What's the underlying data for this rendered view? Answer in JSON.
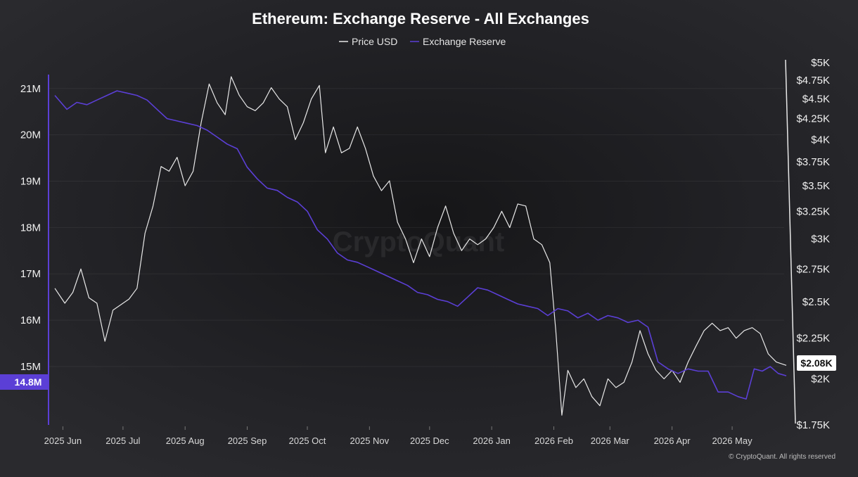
{
  "colors": {
    "price": "#e8e8e8",
    "reserve": "#5b3fd6",
    "badge_reserve_bg": "#5b3fd6",
    "badge_price_bg": "#ffffff",
    "background": "#1e1e21"
  },
  "footer": {
    "watermark": "CryptoQuant",
    "copyright": "© CryptoQuant. All rights reserved"
  },
  "chart_data": {
    "type": "line",
    "title": "Ethereum: Exchange Reserve - All Exchanges",
    "legend_position": "top-center",
    "grid": true,
    "x_tick_labels": [
      "2025 Jun",
      "2025 Jul",
      "2025 Aug",
      "2025 Sep",
      "2025 Oct",
      "2025 Nov",
      "2025 Dec",
      "2026 Jan",
      "2026 Feb",
      "2026 Mar",
      "2026 Apr",
      "2026 May"
    ],
    "x_range": [
      "2025-05-28",
      "2026-05-28"
    ],
    "y_left": {
      "ticks": [
        "21M",
        "20M",
        "19M",
        "18M",
        "17M",
        "16M",
        "15M"
      ],
      "tick_values": [
        21,
        20,
        19,
        18,
        17,
        16,
        15
      ],
      "range": [
        13.8,
        21.3
      ],
      "unit": "M"
    },
    "y_right": {
      "ticks": [
        "$5K",
        "$4.75K",
        "$4.5K",
        "$4.25K",
        "$4K",
        "$3.75K",
        "$3.5K",
        "$3.25K",
        "$3K",
        "$2.75K",
        "$2.5K",
        "$2.25K",
        "$2K",
        "$1.75K"
      ],
      "tick_values": [
        5000,
        4750,
        4500,
        4250,
        4000,
        3750,
        3500,
        3250,
        3000,
        2750,
        2500,
        2250,
        2000,
        1750
      ],
      "range": [
        1750,
        5000
      ],
      "scale": "log"
    },
    "current_values": {
      "reserve_label": "14.8M",
      "price_label": "$2.08K"
    },
    "series": [
      {
        "name": "Price USD",
        "axis": "right",
        "points": [
          [
            "2025-05-28",
            2600
          ],
          [
            "2025-06-02",
            2490
          ],
          [
            "2025-06-06",
            2570
          ],
          [
            "2025-06-10",
            2750
          ],
          [
            "2025-06-14",
            2530
          ],
          [
            "2025-06-18",
            2490
          ],
          [
            "2025-06-22",
            2230
          ],
          [
            "2025-06-26",
            2440
          ],
          [
            "2025-06-30",
            2480
          ],
          [
            "2025-07-04",
            2520
          ],
          [
            "2025-07-08",
            2600
          ],
          [
            "2025-07-12",
            3050
          ],
          [
            "2025-07-16",
            3300
          ],
          [
            "2025-07-20",
            3700
          ],
          [
            "2025-07-24",
            3650
          ],
          [
            "2025-07-28",
            3800
          ],
          [
            "2025-08-01",
            3500
          ],
          [
            "2025-08-05",
            3650
          ],
          [
            "2025-08-09",
            4200
          ],
          [
            "2025-08-13",
            4700
          ],
          [
            "2025-08-17",
            4450
          ],
          [
            "2025-08-21",
            4300
          ],
          [
            "2025-08-24",
            4800
          ],
          [
            "2025-08-28",
            4550
          ],
          [
            "2025-09-01",
            4400
          ],
          [
            "2025-09-05",
            4350
          ],
          [
            "2025-09-09",
            4450
          ],
          [
            "2025-09-13",
            4650
          ],
          [
            "2025-09-17",
            4500
          ],
          [
            "2025-09-21",
            4400
          ],
          [
            "2025-09-25",
            4000
          ],
          [
            "2025-09-29",
            4200
          ],
          [
            "2025-10-03",
            4500
          ],
          [
            "2025-10-07",
            4680
          ],
          [
            "2025-10-10",
            3850
          ],
          [
            "2025-10-14",
            4150
          ],
          [
            "2025-10-18",
            3850
          ],
          [
            "2025-10-22",
            3900
          ],
          [
            "2025-10-26",
            4150
          ],
          [
            "2025-10-30",
            3900
          ],
          [
            "2025-11-03",
            3600
          ],
          [
            "2025-11-07",
            3450
          ],
          [
            "2025-11-11",
            3550
          ],
          [
            "2025-11-15",
            3150
          ],
          [
            "2025-11-19",
            3000
          ],
          [
            "2025-11-23",
            2800
          ],
          [
            "2025-11-27",
            3000
          ],
          [
            "2025-12-01",
            2850
          ],
          [
            "2025-12-05",
            3100
          ],
          [
            "2025-12-09",
            3300
          ],
          [
            "2025-12-13",
            3050
          ],
          [
            "2025-12-17",
            2900
          ],
          [
            "2025-12-21",
            3000
          ],
          [
            "2025-12-25",
            2950
          ],
          [
            "2025-12-29",
            3000
          ],
          [
            "2026-01-02",
            3100
          ],
          [
            "2026-01-06",
            3250
          ],
          [
            "2026-01-10",
            3100
          ],
          [
            "2026-01-14",
            3320
          ],
          [
            "2026-01-18",
            3300
          ],
          [
            "2026-01-22",
            3000
          ],
          [
            "2026-01-26",
            2950
          ],
          [
            "2026-01-30",
            2800
          ],
          [
            "2026-02-02",
            2300
          ],
          [
            "2026-02-05",
            1800
          ],
          [
            "2026-02-08",
            2050
          ],
          [
            "2026-02-12",
            1950
          ],
          [
            "2026-02-16",
            2000
          ],
          [
            "2026-02-20",
            1900
          ],
          [
            "2026-02-24",
            1850
          ],
          [
            "2026-02-28",
            2000
          ],
          [
            "2026-03-04",
            1950
          ],
          [
            "2026-03-08",
            1980
          ],
          [
            "2026-03-12",
            2100
          ],
          [
            "2026-03-16",
            2300
          ],
          [
            "2026-03-20",
            2150
          ],
          [
            "2026-03-24",
            2050
          ],
          [
            "2026-03-28",
            2000
          ],
          [
            "2026-04-01",
            2050
          ],
          [
            "2026-04-05",
            1980
          ],
          [
            "2026-04-09",
            2100
          ],
          [
            "2026-04-13",
            2200
          ],
          [
            "2026-04-17",
            2300
          ],
          [
            "2026-04-21",
            2350
          ],
          [
            "2026-04-25",
            2300
          ],
          [
            "2026-04-29",
            2320
          ],
          [
            "2026-05-03",
            2250
          ],
          [
            "2026-05-07",
            2300
          ],
          [
            "2026-05-11",
            2320
          ],
          [
            "2026-05-15",
            2280
          ],
          [
            "2026-05-19",
            2150
          ],
          [
            "2026-05-23",
            2100
          ],
          [
            "2026-05-28",
            2080
          ]
        ]
      },
      {
        "name": "Exchange Reserve",
        "axis": "left",
        "points": [
          [
            "2025-05-28",
            20.85
          ],
          [
            "2025-06-03",
            20.55
          ],
          [
            "2025-06-08",
            20.7
          ],
          [
            "2025-06-13",
            20.65
          ],
          [
            "2025-06-18",
            20.75
          ],
          [
            "2025-06-23",
            20.85
          ],
          [
            "2025-06-28",
            20.95
          ],
          [
            "2025-07-03",
            20.9
          ],
          [
            "2025-07-08",
            20.85
          ],
          [
            "2025-07-13",
            20.75
          ],
          [
            "2025-07-18",
            20.55
          ],
          [
            "2025-07-23",
            20.35
          ],
          [
            "2025-07-28",
            20.3
          ],
          [
            "2025-08-02",
            20.25
          ],
          [
            "2025-08-07",
            20.2
          ],
          [
            "2025-08-12",
            20.1
          ],
          [
            "2025-08-17",
            19.95
          ],
          [
            "2025-08-22",
            19.8
          ],
          [
            "2025-08-27",
            19.7
          ],
          [
            "2025-09-01",
            19.3
          ],
          [
            "2025-09-06",
            19.05
          ],
          [
            "2025-09-11",
            18.85
          ],
          [
            "2025-09-16",
            18.8
          ],
          [
            "2025-09-21",
            18.65
          ],
          [
            "2025-09-26",
            18.55
          ],
          [
            "2025-10-01",
            18.35
          ],
          [
            "2025-10-06",
            17.95
          ],
          [
            "2025-10-11",
            17.75
          ],
          [
            "2025-10-16",
            17.45
          ],
          [
            "2025-10-21",
            17.3
          ],
          [
            "2025-10-26",
            17.25
          ],
          [
            "2025-10-31",
            17.15
          ],
          [
            "2025-11-05",
            17.05
          ],
          [
            "2025-11-10",
            16.95
          ],
          [
            "2025-11-15",
            16.85
          ],
          [
            "2025-11-20",
            16.75
          ],
          [
            "2025-11-25",
            16.6
          ],
          [
            "2025-11-30",
            16.55
          ],
          [
            "2025-12-05",
            16.45
          ],
          [
            "2025-12-10",
            16.4
          ],
          [
            "2025-12-15",
            16.3
          ],
          [
            "2025-12-20",
            16.5
          ],
          [
            "2025-12-25",
            16.7
          ],
          [
            "2025-12-30",
            16.65
          ],
          [
            "2026-01-04",
            16.55
          ],
          [
            "2026-01-09",
            16.45
          ],
          [
            "2026-01-14",
            16.35
          ],
          [
            "2026-01-19",
            16.3
          ],
          [
            "2026-01-24",
            16.25
          ],
          [
            "2026-01-29",
            16.1
          ],
          [
            "2026-02-03",
            16.25
          ],
          [
            "2026-02-08",
            16.2
          ],
          [
            "2026-02-13",
            16.05
          ],
          [
            "2026-02-18",
            16.15
          ],
          [
            "2026-02-23",
            16.0
          ],
          [
            "2026-02-28",
            16.1
          ],
          [
            "2026-03-05",
            16.05
          ],
          [
            "2026-03-10",
            15.95
          ],
          [
            "2026-03-15",
            16.0
          ],
          [
            "2026-03-20",
            15.85
          ],
          [
            "2026-03-25",
            15.1
          ],
          [
            "2026-03-30",
            14.95
          ],
          [
            "2026-04-04",
            14.85
          ],
          [
            "2026-04-09",
            14.95
          ],
          [
            "2026-04-14",
            14.9
          ],
          [
            "2026-04-19",
            14.9
          ],
          [
            "2026-04-24",
            14.45
          ],
          [
            "2026-04-29",
            14.45
          ],
          [
            "2026-05-04",
            14.35
          ],
          [
            "2026-05-08",
            14.3
          ],
          [
            "2026-05-12",
            14.95
          ],
          [
            "2026-05-16",
            14.9
          ],
          [
            "2026-05-20",
            15.0
          ],
          [
            "2026-05-24",
            14.85
          ],
          [
            "2026-05-28",
            14.8
          ]
        ]
      }
    ]
  }
}
